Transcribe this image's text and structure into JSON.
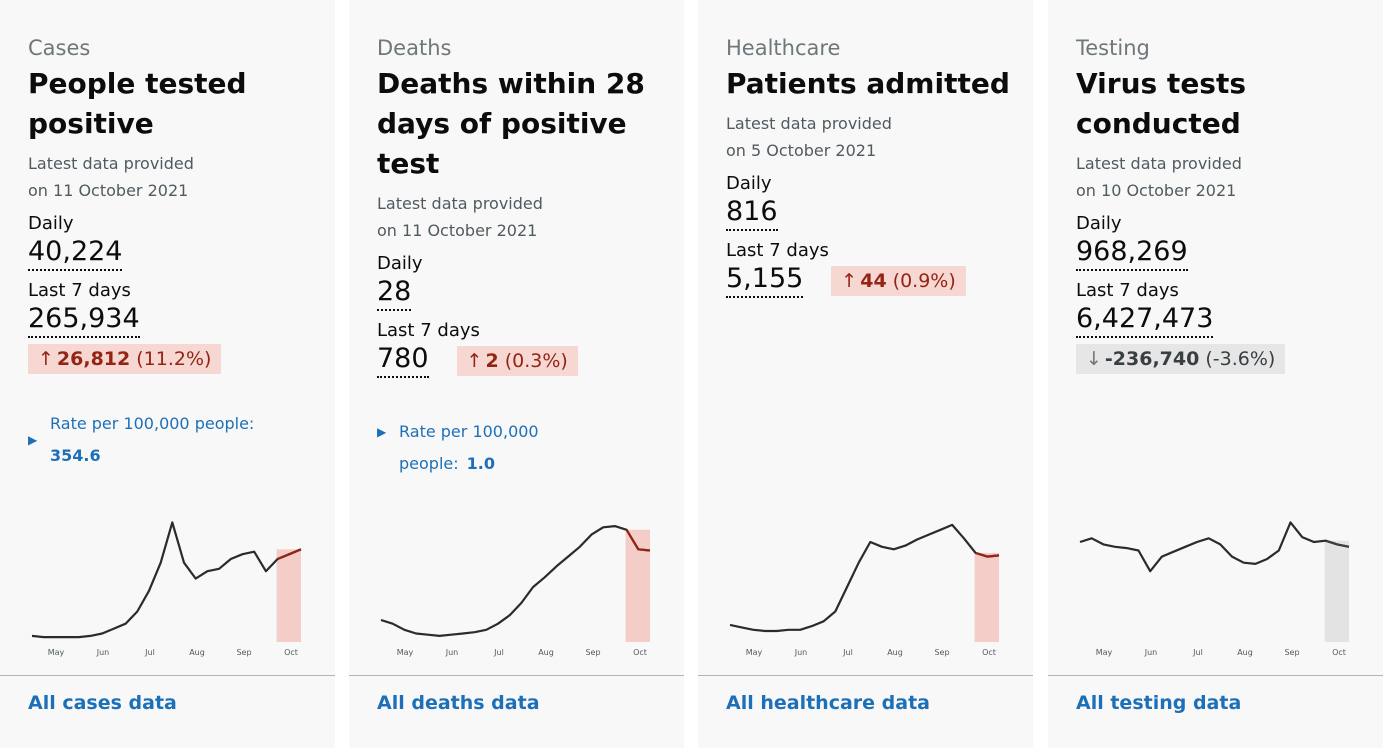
{
  "cards": [
    {
      "category": "Cases",
      "title": "People tested positive",
      "date_text": "Latest data provided on 11 October 2021",
      "daily_label": "Daily",
      "daily_value": "40,224",
      "week_label": "Last 7 days",
      "week_value": "265,934",
      "change": {
        "direction": "up",
        "value": "26,812",
        "percent": "(11.2%)",
        "color": "#942514",
        "background": "#f6d7d2"
      },
      "rate_label": "Rate per 100,000 people:",
      "rate_value": "354.6",
      "chart": {
        "type": "line",
        "months": [
          "May",
          "Jun",
          "Jul",
          "Aug",
          "Sep",
          "Oct"
        ],
        "ylim": [
          0,
          100
        ],
        "highlight_color": "#f4cdc9",
        "tail_color": "#942514",
        "values": [
          5,
          4,
          4,
          4,
          4,
          5,
          7,
          11,
          15,
          25,
          42,
          65,
          98,
          65,
          52,
          58,
          60,
          68,
          72,
          74,
          58,
          68,
          72,
          76
        ]
      },
      "link": "All cases data"
    },
    {
      "category": "Deaths",
      "title": "Deaths within 28 days of positive test",
      "date_text": "Latest data provided on 11 October 2021",
      "daily_label": "Daily",
      "daily_value": "28",
      "week_label": "Last 7 days",
      "week_value": "780",
      "change": {
        "direction": "up",
        "value": "2",
        "percent": "(0.3%)",
        "color": "#942514",
        "background": "#f6d7d2"
      },
      "rate_label": "Rate per 100,000 people:",
      "rate_value": "1.0",
      "chart": {
        "type": "line",
        "months": [
          "May",
          "Jun",
          "Jul",
          "Aug",
          "Sep",
          "Oct"
        ],
        "ylim": [
          0,
          100
        ],
        "highlight_color": "#f4cdc9",
        "tail_color": "#942514",
        "values": [
          18,
          15,
          10,
          7,
          6,
          5,
          6,
          7,
          8,
          10,
          15,
          22,
          32,
          45,
          53,
          62,
          70,
          78,
          88,
          94,
          95,
          92,
          76,
          75
        ]
      },
      "link": "All deaths data"
    },
    {
      "category": "Healthcare",
      "title": "Patients admitted",
      "date_text": "Latest data provided on 5 October 2021",
      "daily_label": "Daily",
      "daily_value": "816",
      "week_label": "Last 7 days",
      "week_value": "5,155",
      "change": {
        "direction": "up",
        "value": "44",
        "percent": "(0.9%)",
        "color": "#942514",
        "background": "#f6d7d2"
      },
      "chart": {
        "type": "line",
        "months": [
          "May",
          "Jun",
          "Jul",
          "Aug",
          "Sep",
          "Oct"
        ],
        "ylim": [
          0,
          100
        ],
        "highlight_color": "#f4cdc9",
        "tail_color": "#942514",
        "values": [
          14,
          12,
          10,
          9,
          9,
          10,
          10,
          13,
          17,
          25,
          45,
          65,
          82,
          78,
          76,
          79,
          84,
          88,
          92,
          96,
          85,
          73,
          70,
          71
        ]
      },
      "link": "All healthcare data"
    },
    {
      "category": "Testing",
      "title": "Virus tests conducted",
      "date_text": "Latest data provided on 10 October 2021",
      "daily_label": "Daily",
      "daily_value": "968,269",
      "week_label": "Last 7 days",
      "week_value": "6,427,473",
      "change": {
        "direction": "down",
        "value": "-236,740",
        "percent": "(-3.6%)",
        "color": "#383f43",
        "background": "#e6e6e6"
      },
      "chart": {
        "type": "line",
        "months": [
          "May",
          "Jun",
          "Jul",
          "Aug",
          "Sep",
          "Oct"
        ],
        "ylim": [
          0,
          100
        ],
        "highlight_color": "#e3e3e3",
        "tail_color": "#383f43",
        "values": [
          82,
          85,
          80,
          78,
          77,
          75,
          58,
          70,
          74,
          78,
          82,
          85,
          80,
          70,
          65,
          64,
          68,
          75,
          98,
          86,
          82,
          83,
          80,
          78
        ]
      },
      "link": "All testing data"
    }
  ]
}
